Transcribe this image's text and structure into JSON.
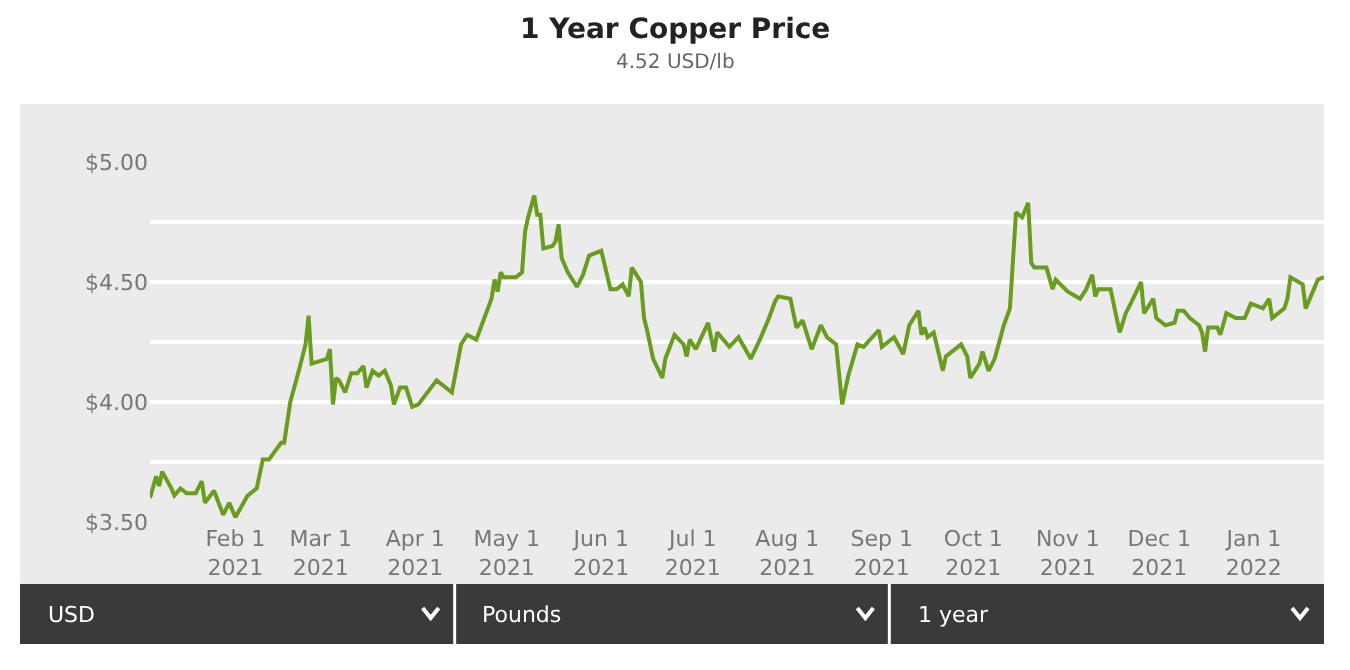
{
  "chart_data": {
    "type": "line",
    "title": "1 Year Copper Price",
    "subtitle": "4.52 USD/lb",
    "x": [
      "2021-01-04",
      "2021-01-06",
      "2021-01-07",
      "2021-01-08",
      "2021-01-11",
      "2021-01-12",
      "2021-01-14",
      "2021-01-16",
      "2021-01-19",
      "2021-01-21",
      "2021-01-22",
      "2021-01-25",
      "2021-01-28",
      "2021-01-30",
      "2021-02-01",
      "2021-02-05",
      "2021-02-08",
      "2021-02-10",
      "2021-02-12",
      "2021-02-16",
      "2021-02-17",
      "2021-02-19",
      "2021-02-22",
      "2021-02-24",
      "2021-02-25",
      "2021-02-26",
      "2021-03-03",
      "2021-03-04",
      "2021-03-05",
      "2021-03-06",
      "2021-03-07",
      "2021-03-09",
      "2021-03-11",
      "2021-03-13",
      "2021-03-15",
      "2021-03-16",
      "2021-03-18",
      "2021-03-20",
      "2021-03-22",
      "2021-03-24",
      "2021-03-25",
      "2021-03-27",
      "2021-03-29",
      "2021-03-31",
      "2021-04-02",
      "2021-04-05",
      "2021-04-08",
      "2021-04-12",
      "2021-04-13",
      "2021-04-16",
      "2021-04-18",
      "2021-04-21",
      "2021-04-26",
      "2021-04-27",
      "2021-04-28",
      "2021-04-29",
      "2021-04-30",
      "2021-05-04",
      "2021-05-06",
      "2021-05-07",
      "2021-05-08",
      "2021-05-10",
      "2021-05-11",
      "2021-05-12",
      "2021-05-13",
      "2021-05-16",
      "2021-05-17",
      "2021-05-18",
      "2021-05-19",
      "2021-05-21",
      "2021-05-24",
      "2021-05-26",
      "2021-05-28",
      "2021-06-01",
      "2021-06-04",
      "2021-06-06",
      "2021-06-08",
      "2021-06-10",
      "2021-06-11",
      "2021-06-14",
      "2021-06-15",
      "2021-06-16",
      "2021-06-18",
      "2021-06-21",
      "2021-06-22",
      "2021-06-25",
      "2021-06-28",
      "2021-06-29",
      "2021-06-30",
      "2021-07-02",
      "2021-07-06",
      "2021-07-08",
      "2021-07-09",
      "2021-07-13",
      "2021-07-16",
      "2021-07-20",
      "2021-07-23",
      "2021-07-26",
      "2021-07-28",
      "2021-07-29",
      "2021-08-02",
      "2021-08-04",
      "2021-08-06",
      "2021-08-09",
      "2021-08-12",
      "2021-08-14",
      "2021-08-17",
      "2021-08-19",
      "2021-08-21",
      "2021-08-24",
      "2021-08-26",
      "2021-08-31",
      "2021-09-01",
      "2021-09-05",
      "2021-09-08",
      "2021-09-10",
      "2021-09-13",
      "2021-09-14",
      "2021-09-15",
      "2021-09-16",
      "2021-09-18",
      "2021-09-21",
      "2021-09-22",
      "2021-09-27",
      "2021-09-29",
      "2021-09-30",
      "2021-10-03",
      "2021-10-04",
      "2021-10-06",
      "2021-10-08",
      "2021-10-11",
      "2021-10-13",
      "2021-10-15",
      "2021-10-17",
      "2021-10-19",
      "2021-10-20",
      "2021-10-21",
      "2021-10-25",
      "2021-10-27",
      "2021-10-28",
      "2021-11-01",
      "2021-11-05",
      "2021-11-07",
      "2021-11-09",
      "2021-11-10",
      "2021-11-11",
      "2021-11-15",
      "2021-11-18",
      "2021-11-20",
      "2021-11-22",
      "2021-11-25",
      "2021-11-26",
      "2021-11-29",
      "2021-11-30",
      "2021-12-03",
      "2021-12-06",
      "2021-12-07",
      "2021-12-09",
      "2021-12-11",
      "2021-12-14",
      "2021-12-15",
      "2021-12-16",
      "2021-12-17",
      "2021-12-20",
      "2021-12-21",
      "2021-12-23",
      "2021-12-26",
      "2021-12-29",
      "2021-12-31",
      "2022-01-04",
      "2022-01-06",
      "2022-01-07",
      "2022-01-11",
      "2022-01-12",
      "2022-01-13",
      "2022-01-17",
      "2022-01-18",
      "2022-01-22",
      "2022-01-24"
    ],
    "series": [
      {
        "color": "#6a9c1f",
        "values": [
          3.6,
          3.69,
          3.65,
          3.71,
          3.64,
          3.61,
          3.64,
          3.62,
          3.62,
          3.67,
          3.58,
          3.63,
          3.53,
          3.58,
          3.52,
          3.61,
          3.64,
          3.76,
          3.76,
          3.83,
          3.83,
          4.0,
          4.14,
          4.24,
          4.36,
          4.16,
          4.18,
          4.22,
          3.99,
          4.1,
          4.09,
          4.04,
          4.12,
          4.12,
          4.15,
          4.06,
          4.13,
          4.11,
          4.13,
          4.07,
          3.99,
          4.06,
          4.06,
          3.98,
          3.99,
          4.04,
          4.09,
          4.05,
          4.04,
          4.24,
          4.28,
          4.26,
          4.43,
          4.51,
          4.46,
          4.54,
          4.52,
          4.52,
          4.54,
          4.71,
          4.77,
          4.86,
          4.78,
          4.78,
          4.64,
          4.65,
          4.67,
          4.74,
          4.6,
          4.54,
          4.48,
          4.53,
          4.61,
          4.63,
          4.47,
          4.47,
          4.49,
          4.44,
          4.56,
          4.5,
          4.35,
          4.3,
          4.18,
          4.1,
          4.18,
          4.28,
          4.24,
          4.19,
          4.26,
          4.22,
          4.33,
          4.21,
          4.29,
          4.23,
          4.27,
          4.18,
          4.26,
          4.35,
          4.42,
          4.44,
          4.43,
          4.31,
          4.34,
          4.22,
          4.32,
          4.27,
          4.24,
          3.99,
          4.11,
          4.24,
          4.23,
          4.3,
          4.23,
          4.27,
          4.2,
          4.32,
          4.38,
          4.28,
          4.31,
          4.27,
          4.29,
          4.13,
          4.19,
          4.24,
          4.19,
          4.1,
          4.16,
          4.21,
          4.13,
          4.18,
          4.32,
          4.39,
          4.79,
          4.77,
          4.83,
          4.58,
          4.56,
          4.56,
          4.47,
          4.51,
          4.46,
          4.43,
          4.47,
          4.53,
          4.44,
          4.47,
          4.47,
          4.29,
          4.37,
          4.42,
          4.5,
          4.37,
          4.43,
          4.35,
          4.32,
          4.33,
          4.38,
          4.38,
          4.35,
          4.32,
          4.29,
          4.21,
          4.31,
          4.31,
          4.28,
          4.37,
          4.35,
          4.35,
          4.41,
          4.39,
          4.43,
          4.35,
          4.39,
          4.43,
          4.52,
          4.49,
          4.39,
          4.51,
          4.52
        ]
      }
    ],
    "xlim": [
      "2021-01-04",
      "2022-01-24"
    ],
    "xticks": [
      {
        "value": "2021-02-01",
        "label": "Feb 1\n2021"
      },
      {
        "value": "2021-03-01",
        "label": "Mar 1\n2021"
      },
      {
        "value": "2021-04-01",
        "label": "Apr 1\n2021"
      },
      {
        "value": "2021-05-01",
        "label": "May 1\n2021"
      },
      {
        "value": "2021-06-01",
        "label": "Jun 1\n2021"
      },
      {
        "value": "2021-07-01",
        "label": "Jul 1\n2021"
      },
      {
        "value": "2021-08-01",
        "label": "Aug 1\n2021"
      },
      {
        "value": "2021-09-01",
        "label": "Sep 1\n2021"
      },
      {
        "value": "2021-10-01",
        "label": "Oct 1\n2021"
      },
      {
        "value": "2021-11-01",
        "label": "Nov 1\n2021"
      },
      {
        "value": "2021-12-01",
        "label": "Dec 1\n2021"
      },
      {
        "value": "2022-01-01",
        "label": "Jan 1\n2022"
      }
    ],
    "ylim": [
      3.5,
      5.0
    ],
    "yticks": [
      {
        "value": 3.5,
        "label": "$3.50"
      },
      {
        "value": 3.75,
        "label": null
      },
      {
        "value": 4.0,
        "label": "$4.00"
      },
      {
        "value": 4.25,
        "label": null
      },
      {
        "value": 4.5,
        "label": "$4.50"
      },
      {
        "value": 4.75,
        "label": null
      },
      {
        "value": 5.0,
        "label": "$5.00"
      }
    ],
    "grid": "y",
    "marker": "none",
    "line_style": "solid",
    "annotations": [
      "USD",
      "Pounds",
      "1 year"
    ]
  }
}
